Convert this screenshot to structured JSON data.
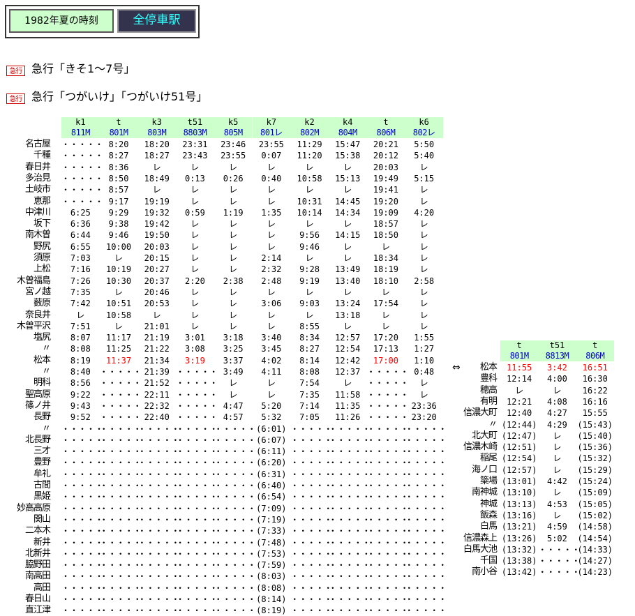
{
  "header": {
    "year_label": "1982年夏の時刻",
    "all_stations_label": "全停車駅"
  },
  "trains": [
    {
      "badge": "急行",
      "name": "急行「きそ1～7号」"
    },
    {
      "badge": "急行",
      "name": "急行「つがいけ」「つがいけ51号」"
    }
  ],
  "main_table": {
    "headers": [
      "k1",
      "t",
      "k3",
      "t51",
      "k5",
      "k7",
      "k2",
      "k4",
      "t",
      "k6"
    ],
    "numbers": [
      "811M",
      "801M",
      "803M",
      "8803M",
      "805M",
      "801レ",
      "802M",
      "804M",
      "806M",
      "802レ"
    ],
    "rows": [
      {
        "station": "名古屋",
        "times": [
          "・・・・・",
          "8:20",
          "18:20",
          "23:31",
          "23:46",
          "23:55",
          "11:29",
          "15:47",
          "20:21",
          "5:50"
        ]
      },
      {
        "station": "千種",
        "times": [
          "・・・・・",
          "8:27",
          "18:27",
          "23:43",
          "23:55",
          "0:07",
          "11:20",
          "15:38",
          "20:12",
          "5:40"
        ]
      },
      {
        "station": "春日井",
        "times": [
          "・・・・・",
          "8:36",
          "レ",
          "レ",
          "レ",
          "レ",
          "レ",
          "レ",
          "20:03",
          "レ"
        ]
      },
      {
        "station": "多治見",
        "times": [
          "・・・・・",
          "8:50",
          "18:49",
          "0:13",
          "0:26",
          "0:40",
          "10:58",
          "15:13",
          "19:49",
          "5:15"
        ]
      },
      {
        "station": "土岐市",
        "times": [
          "・・・・・",
          "8:57",
          "レ",
          "レ",
          "レ",
          "レ",
          "レ",
          "レ",
          "19:41",
          "レ"
        ]
      },
      {
        "station": "恵那",
        "times": [
          "・・・・・",
          "9:17",
          "19:19",
          "レ",
          "レ",
          "レ",
          "10:31",
          "14:45",
          "19:20",
          "レ"
        ]
      },
      {
        "station": "中津川",
        "times": [
          "6:25",
          "9:29",
          "19:32",
          "0:59",
          "1:19",
          "1:35",
          "10:14",
          "14:34",
          "19:09",
          "4:20"
        ]
      },
      {
        "station": "坂下",
        "times": [
          "6:36",
          "9:38",
          "19:42",
          "レ",
          "レ",
          "レ",
          "レ",
          "レ",
          "18:57",
          "レ"
        ]
      },
      {
        "station": "南木曽",
        "times": [
          "6:44",
          "9:46",
          "19:50",
          "レ",
          "レ",
          "レ",
          "9:56",
          "14:15",
          "18:50",
          "レ"
        ]
      },
      {
        "station": "野尻",
        "times": [
          "6:55",
          "10:00",
          "20:03",
          "レ",
          "レ",
          "レ",
          "9:46",
          "レ",
          "レ",
          "レ"
        ]
      },
      {
        "station": "須原",
        "times": [
          "7:03",
          "レ",
          "20:15",
          "レ",
          "レ",
          "2:14",
          "レ",
          "レ",
          "18:34",
          "レ"
        ]
      },
      {
        "station": "上松",
        "times": [
          "7:16",
          "10:19",
          "20:27",
          "レ",
          "レ",
          "2:32",
          "9:28",
          "13:49",
          "18:19",
          "レ"
        ]
      },
      {
        "station": "木曽福島",
        "times": [
          "7:26",
          "10:30",
          "20:37",
          "2:20",
          "2:38",
          "2:48",
          "9:19",
          "13:40",
          "18:10",
          "2:58"
        ]
      },
      {
        "station": "宮ノ越",
        "times": [
          "7:35",
          "レ",
          "20:46",
          "レ",
          "レ",
          "レ",
          "レ",
          "レ",
          "レ",
          "レ"
        ]
      },
      {
        "station": "薮原",
        "times": [
          "7:42",
          "10:51",
          "20:53",
          "レ",
          "レ",
          "3:06",
          "9:03",
          "13:24",
          "17:54",
          "レ"
        ]
      },
      {
        "station": "奈良井",
        "times": [
          "レ",
          "10:58",
          "レ",
          "レ",
          "レ",
          "レ",
          "レ",
          "13:18",
          "レ",
          "レ"
        ]
      },
      {
        "station": "木曽平沢",
        "times": [
          "7:51",
          "レ",
          "21:01",
          "レ",
          "レ",
          "レ",
          "8:55",
          "レ",
          "レ",
          "レ"
        ]
      },
      {
        "station": "塩尻",
        "times": [
          "8:07",
          "11:17",
          "21:19",
          "3:01",
          "3:18",
          "3:40",
          "8:34",
          "12:57",
          "17:20",
          "1:55"
        ]
      },
      {
        "station": "〃",
        "times": [
          "8:08",
          "11:25",
          "21:22",
          "3:08",
          "3:25",
          "3:45",
          "8:27",
          "12:54",
          "17:13",
          "1:27"
        ]
      },
      {
        "station": "松本",
        "red": [
          1,
          3,
          8
        ],
        "times": [
          "8:19",
          "11:37",
          "21:34",
          "3:19",
          "3:37",
          "4:02",
          "8:14",
          "12:42",
          "17:00",
          "1:10"
        ]
      },
      {
        "station": "〃",
        "times": [
          "8:40",
          "・・・・・",
          "21:39",
          "・・・・・",
          "3:49",
          "4:11",
          "8:08",
          "12:37",
          "・・・・・",
          "0:48"
        ]
      },
      {
        "station": "明科",
        "times": [
          "8:56",
          "・・・・・",
          "21:52",
          "・・・・・",
          "レ",
          "レ",
          "7:54",
          "レ",
          "・・・・・",
          "レ"
        ]
      },
      {
        "station": "聖高原",
        "times": [
          "9:22",
          "・・・・・",
          "22:11",
          "・・・・・",
          "レ",
          "レ",
          "7:35",
          "11:58",
          "・・・・・",
          "レ"
        ]
      },
      {
        "station": "篠ノ井",
        "times": [
          "9:43",
          "・・・・・",
          "22:32",
          "・・・・・",
          "4:47",
          "5:20",
          "7:14",
          "11:35",
          "・・・・・",
          "23:36"
        ]
      },
      {
        "station": "長野",
        "times": [
          "9:52",
          "・・・・・",
          "22:40",
          "・・・・・",
          "4:57",
          "5:32",
          "7:05",
          "11:26",
          "・・・・・",
          "23:20"
        ]
      },
      {
        "station": "〃",
        "times": [
          "・・・・・",
          "・・・・・",
          "・・・・・",
          "・・・・・",
          "・・・・・",
          "(6:01)",
          "・・・・・",
          "・・・・・",
          "・・・・・",
          "・・・・・"
        ]
      },
      {
        "station": "北長野",
        "times": [
          "・・・・・",
          "・・・・・",
          "・・・・・",
          "・・・・・",
          "・・・・・",
          "(6:07)",
          "・・・・・",
          "・・・・・",
          "・・・・・",
          "・・・・・"
        ]
      },
      {
        "station": "三才",
        "times": [
          "・・・・・",
          "・・・・・",
          "・・・・・",
          "・・・・・",
          "・・・・・",
          "(6:11)",
          "・・・・・",
          "・・・・・",
          "・・・・・",
          "・・・・・"
        ]
      },
      {
        "station": "豊野",
        "times": [
          "・・・・・",
          "・・・・・",
          "・・・・・",
          "・・・・・",
          "・・・・・",
          "(6:20)",
          "・・・・・",
          "・・・・・",
          "・・・・・",
          "・・・・・"
        ]
      },
      {
        "station": "牟礼",
        "times": [
          "・・・・・",
          "・・・・・",
          "・・・・・",
          "・・・・・",
          "・・・・・",
          "(6:31)",
          "・・・・・",
          "・・・・・",
          "・・・・・",
          "・・・・・"
        ]
      },
      {
        "station": "古間",
        "times": [
          "・・・・・",
          "・・・・・",
          "・・・・・",
          "・・・・・",
          "・・・・・",
          "(6:40)",
          "・・・・・",
          "・・・・・",
          "・・・・・",
          "・・・・・"
        ]
      },
      {
        "station": "黒姫",
        "times": [
          "・・・・・",
          "・・・・・",
          "・・・・・",
          "・・・・・",
          "・・・・・",
          "(6:54)",
          "・・・・・",
          "・・・・・",
          "・・・・・",
          "・・・・・"
        ]
      },
      {
        "station": "妙高高原",
        "times": [
          "・・・・・",
          "・・・・・",
          "・・・・・",
          "・・・・・",
          "・・・・・",
          "(7:09)",
          "・・・・・",
          "・・・・・",
          "・・・・・",
          "・・・・・"
        ]
      },
      {
        "station": "関山",
        "times": [
          "・・・・・",
          "・・・・・",
          "・・・・・",
          "・・・・・",
          "・・・・・",
          "(7:19)",
          "・・・・・",
          "・・・・・",
          "・・・・・",
          "・・・・・"
        ]
      },
      {
        "station": "二本木",
        "times": [
          "・・・・・",
          "・・・・・",
          "・・・・・",
          "・・・・・",
          "・・・・・",
          "(7:33)",
          "・・・・・",
          "・・・・・",
          "・・・・・",
          "・・・・・"
        ]
      },
      {
        "station": "新井",
        "times": [
          "・・・・・",
          "・・・・・",
          "・・・・・",
          "・・・・・",
          "・・・・・",
          "(7:48)",
          "・・・・・",
          "・・・・・",
          "・・・・・",
          "・・・・・"
        ]
      },
      {
        "station": "北新井",
        "times": [
          "・・・・・",
          "・・・・・",
          "・・・・・",
          "・・・・・",
          "・・・・・",
          "(7:53)",
          "・・・・・",
          "・・・・・",
          "・・・・・",
          "・・・・・"
        ]
      },
      {
        "station": "脇野田",
        "times": [
          "・・・・・",
          "・・・・・",
          "・・・・・",
          "・・・・・",
          "・・・・・",
          "(7:59)",
          "・・・・・",
          "・・・・・",
          "・・・・・",
          "・・・・・"
        ]
      },
      {
        "station": "南高田",
        "times": [
          "・・・・・",
          "・・・・・",
          "・・・・・",
          "・・・・・",
          "・・・・・",
          "(8:03)",
          "・・・・・",
          "・・・・・",
          "・・・・・",
          "・・・・・"
        ]
      },
      {
        "station": "高田",
        "times": [
          "・・・・・",
          "・・・・・",
          "・・・・・",
          "・・・・・",
          "・・・・・",
          "(8:08)",
          "・・・・・",
          "・・・・・",
          "・・・・・",
          "・・・・・"
        ]
      },
      {
        "station": "春日山",
        "times": [
          "・・・・・",
          "・・・・・",
          "・・・・・",
          "・・・・・",
          "・・・・・",
          "(8:14)",
          "・・・・・",
          "・・・・・",
          "・・・・・",
          "・・・・・"
        ]
      },
      {
        "station": "直江津",
        "times": [
          "・・・・・",
          "・・・・・",
          "・・・・・",
          "・・・・・",
          "・・・・・",
          "(8:19)",
          "・・・・・",
          "・・・・・",
          "・・・・・",
          "・・・・・"
        ]
      }
    ]
  },
  "branch_table": {
    "arrow": "⇔",
    "headers": [
      "t",
      "t51",
      "t"
    ],
    "numbers": [
      "801M",
      "8813M",
      "806M"
    ],
    "rows": [
      {
        "station": "松本",
        "red": [
          0,
          1,
          2
        ],
        "times": [
          "11:55",
          "3:42",
          "16:51"
        ]
      },
      {
        "station": "豊科",
        "times": [
          "12:14",
          "4:00",
          "16:30"
        ]
      },
      {
        "station": "穂高",
        "times": [
          "レ",
          "レ",
          "16:22"
        ]
      },
      {
        "station": "有明",
        "times": [
          "12:21",
          "4:08",
          "16:16"
        ]
      },
      {
        "station": "信濃大町",
        "times": [
          "12:40",
          "4:27",
          "15:55"
        ]
      },
      {
        "station": "〃",
        "times": [
          "(12:44)",
          "4:29",
          "(15:43)"
        ]
      },
      {
        "station": "北大町",
        "times": [
          "(12:47)",
          "レ",
          "(15:40)"
        ]
      },
      {
        "station": "信濃木崎",
        "times": [
          "(12:51)",
          "レ",
          "(15:36)"
        ]
      },
      {
        "station": "稲尾",
        "times": [
          "(12:54)",
          "レ",
          "(15:32)"
        ]
      },
      {
        "station": "海ノ口",
        "times": [
          "(12:57)",
          "レ",
          "(15:29)"
        ]
      },
      {
        "station": "簗場",
        "times": [
          "(13:01)",
          "4:42",
          "(15:24)"
        ]
      },
      {
        "station": "南神城",
        "times": [
          "(13:10)",
          "レ",
          "(15:09)"
        ]
      },
      {
        "station": "神城",
        "times": [
          "(13:13)",
          "4:53",
          "(15:05)"
        ]
      },
      {
        "station": "飯森",
        "times": [
          "(13:16)",
          "レ",
          "(15:02)"
        ]
      },
      {
        "station": "白馬",
        "times": [
          "(13:21)",
          "4:59",
          "(14:58)"
        ]
      },
      {
        "station": "信濃森上",
        "times": [
          "(13:26)",
          "5:02",
          "(14:54)"
        ]
      },
      {
        "station": "白馬大池",
        "times": [
          "(13:32)",
          "・・・・・",
          "(14:33)"
        ]
      },
      {
        "station": "千国",
        "times": [
          "(13:38)",
          "・・・・・",
          "(14:27)"
        ]
      },
      {
        "station": "南小谷",
        "times": [
          "(13:42)",
          "・・・・・",
          "(14:23)"
        ]
      }
    ]
  }
}
